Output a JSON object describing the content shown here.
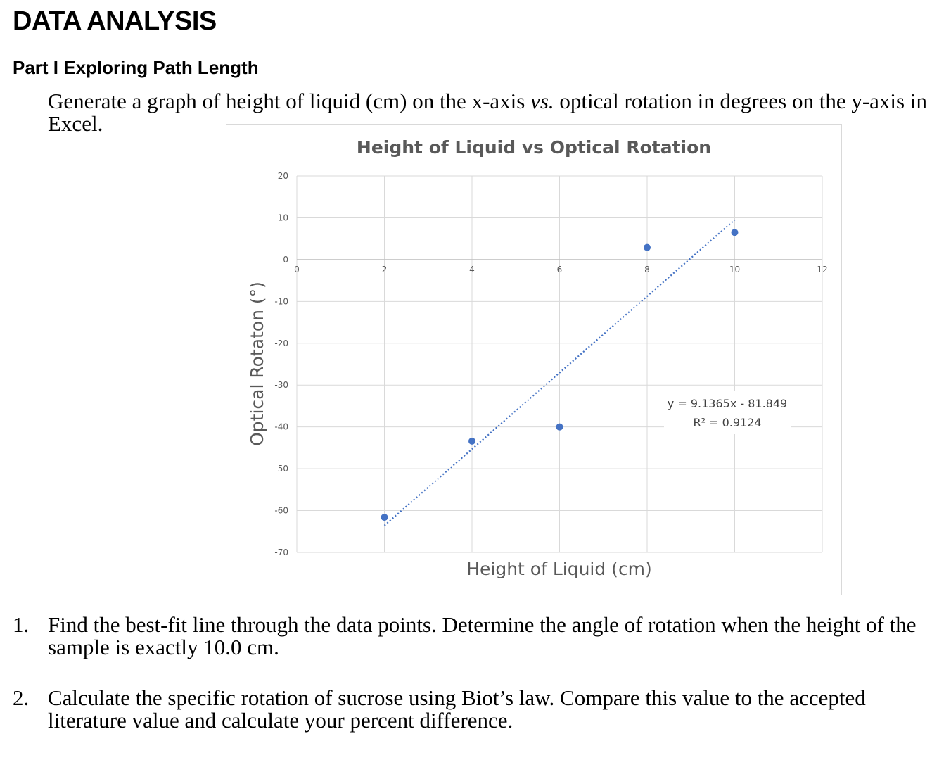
{
  "heading": "DATA ANALYSIS",
  "subheading": "Part I  Exploring Path Length",
  "intro": {
    "part1": "Generate a graph of height of liquid (cm) on the x-axis ",
    "vs": "vs.",
    "part2": " optical rotation in degrees on the y-axis in Excel."
  },
  "chart_data": {
    "type": "scatter",
    "title": "Height of Liquid vs Optical Rotation",
    "xlabel": "Height of Liquid (cm)",
    "ylabel": "Optical Rotaton (°)",
    "xlim": [
      0,
      12
    ],
    "ylim": [
      -70,
      20
    ],
    "x_ticks": [
      0,
      2,
      4,
      6,
      8,
      10,
      12
    ],
    "y_ticks": [
      20,
      10,
      0,
      -10,
      -20,
      -30,
      -40,
      -50,
      -60,
      -70
    ],
    "grid": true,
    "marker_color": "#4472c4",
    "points": [
      {
        "x": 2,
        "y": -61.6
      },
      {
        "x": 4,
        "y": -43.4
      },
      {
        "x": 6,
        "y": -40.0
      },
      {
        "x": 8,
        "y": 2.9
      },
      {
        "x": 10,
        "y": 6.5
      }
    ],
    "trendline": {
      "type": "linear",
      "style": "dotted",
      "slope": 9.1365,
      "intercept": -81.849,
      "x_range": [
        2,
        10
      ],
      "equation": "y = 9.1365x - 81.849",
      "r_squared": "R² = 0.9124"
    }
  },
  "questions": [
    {
      "number": "1.",
      "text": "Find the best-fit line through the data points. Determine the angle of rotation when the height of the sample is exactly 10.0 cm."
    },
    {
      "number": "2.",
      "text": "Calculate the specific rotation of sucrose using Biot’s law. Compare this value to the accepted literature value and calculate your percent difference."
    }
  ]
}
